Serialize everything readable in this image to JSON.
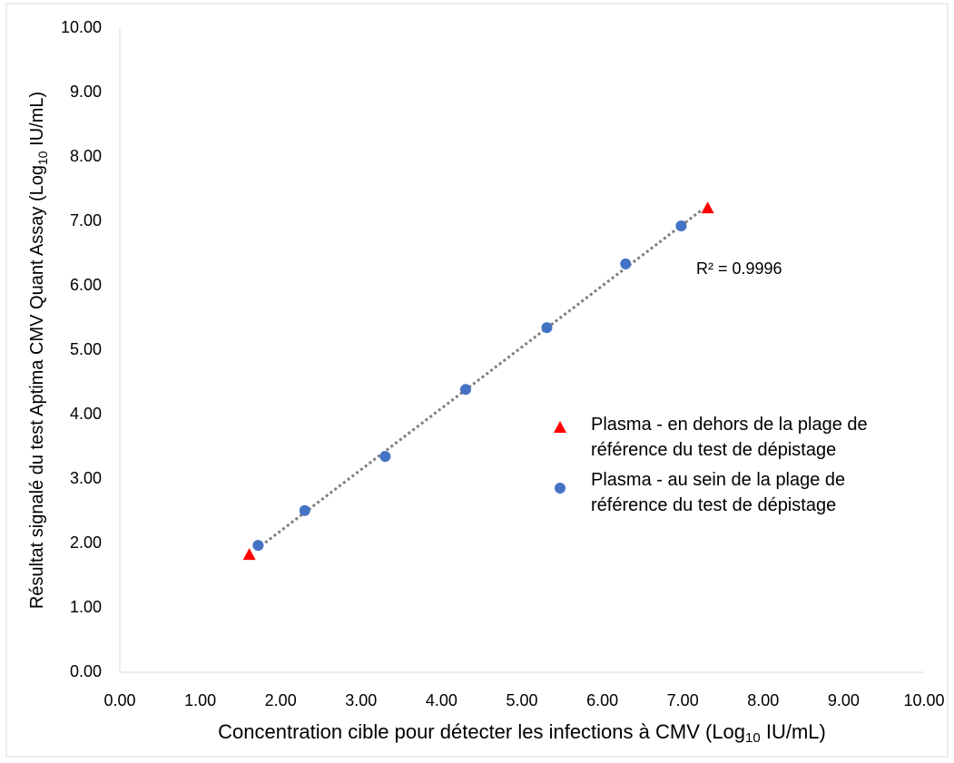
{
  "chart_data": {
    "type": "scatter",
    "x_label": [
      "Concentration cible pour détecter les infections à CMV (Log",
      "10",
      " IU/mL)"
    ],
    "y_label": [
      "Résultat signalé du test Aptima CMV Quant Assay (Log",
      "10",
      " IU/mL)"
    ],
    "xlim": [
      0,
      10
    ],
    "ylim": [
      0,
      10
    ],
    "xticks": [
      {
        "value": 0,
        "label": "0.00"
      },
      {
        "value": 1,
        "label": "1.00"
      },
      {
        "value": 2,
        "label": "2.00"
      },
      {
        "value": 3,
        "label": "3.00"
      },
      {
        "value": 4,
        "label": "4.00"
      },
      {
        "value": 5,
        "label": "5.00"
      },
      {
        "value": 6,
        "label": "6.00"
      },
      {
        "value": 7,
        "label": "7.00"
      },
      {
        "value": 8,
        "label": "8.00"
      },
      {
        "value": 9,
        "label": "9.00"
      },
      {
        "value": 10,
        "label": "10.00"
      }
    ],
    "yticks": [
      {
        "value": 0,
        "label": "0.00"
      },
      {
        "value": 1,
        "label": "1.00"
      },
      {
        "value": 2,
        "label": "2.00"
      },
      {
        "value": 3,
        "label": "3.00"
      },
      {
        "value": 4,
        "label": "4.00"
      },
      {
        "value": 5,
        "label": "5.00"
      },
      {
        "value": 6,
        "label": "6.00"
      },
      {
        "value": 7,
        "label": "7.00"
      },
      {
        "value": 8,
        "label": "8.00"
      },
      {
        "value": 9,
        "label": "9.00"
      },
      {
        "value": 10,
        "label": "10.00"
      }
    ],
    "grid": false,
    "series": [
      {
        "name": "Plasma - en dehors de la plage de référence du test de dépistage",
        "color": "#ff0000",
        "marker": "triangle",
        "x": [
          1.61,
          7.31
        ],
        "values": [
          1.83,
          7.21
        ]
      },
      {
        "name": "Plasma - au sein de la plage de référence du test de dépistage",
        "color": "#4472c4",
        "marker": "circle",
        "x": [
          1.72,
          2.3,
          3.3,
          4.3,
          5.31,
          6.29,
          6.98
        ],
        "values": [
          1.97,
          2.51,
          3.35,
          4.39,
          5.35,
          6.34,
          6.93
        ]
      }
    ],
    "trendline": {
      "color": "#7f7f7f",
      "x": [
        1.7,
        7.25
      ],
      "y": [
        1.91,
        7.19
      ]
    },
    "annotation": "R² = 0.9996"
  }
}
